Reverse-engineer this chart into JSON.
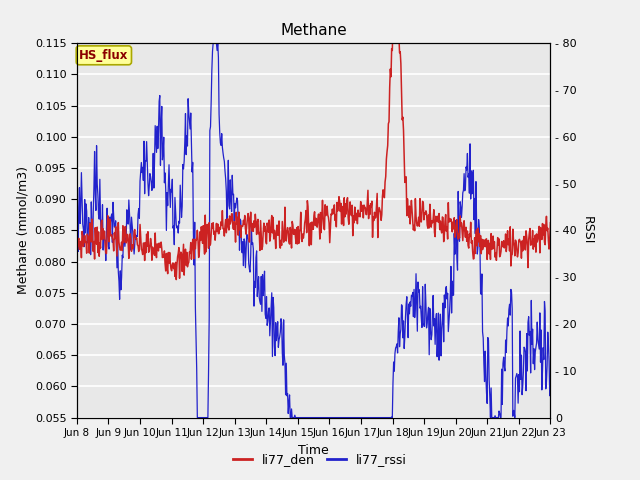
{
  "title": "Methane",
  "ylabel_left": "Methane (mmol/m3)",
  "ylabel_right": "RSSI",
  "xlabel": "Time",
  "ylim_left": [
    0.055,
    0.115
  ],
  "ylim_right": [
    0,
    80
  ],
  "yticks_left": [
    0.055,
    0.06,
    0.065,
    0.07,
    0.075,
    0.08,
    0.085,
    0.09,
    0.095,
    0.1,
    0.105,
    0.11,
    0.115
  ],
  "yticks_right": [
    0,
    10,
    20,
    30,
    40,
    50,
    60,
    70,
    80
  ],
  "xtick_labels": [
    "Jun 8",
    "Jun 9",
    "Jun 10",
    "Jun 11",
    "Jun 12",
    "Jun 13",
    "Jun 14",
    "Jun 15",
    "Jun 16",
    "Jun 17",
    "Jun 18",
    "Jun 19",
    "Jun 20",
    "Jun 21",
    "Jun 22",
    "Jun 23"
  ],
  "color_den": "#cc2222",
  "color_rssi": "#2222cc",
  "legend_label_den": "li77_den",
  "legend_label_rssi": "li77_rssi",
  "annotation_label": "HS_flux",
  "annotation_bg": "#ffff99",
  "annotation_border": "#aaa800",
  "bg_color": "#e8e8e8",
  "grid_color": "#ffffff",
  "n_days": 15,
  "n_points": 720
}
